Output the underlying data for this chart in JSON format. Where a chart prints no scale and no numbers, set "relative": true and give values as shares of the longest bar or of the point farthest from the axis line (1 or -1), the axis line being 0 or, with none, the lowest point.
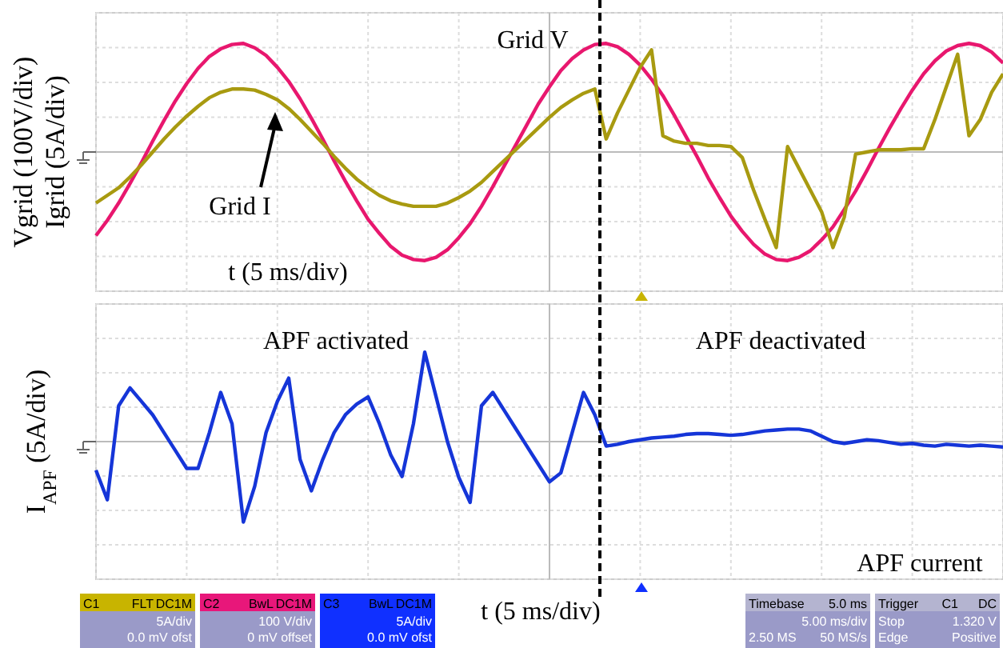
{
  "chart_data": [
    {
      "type": "line",
      "relative": true,
      "grid": true,
      "xlabel": "t (5 ms/div)",
      "ylabel": "Vgrid (100V/div)\nIgrid (5A/div)",
      "categories": [
        null,
        null,
        null,
        null,
        null,
        null,
        null,
        null,
        null,
        null,
        null,
        null,
        null,
        null,
        null,
        null,
        null,
        null,
        null,
        null,
        null,
        null,
        null,
        null,
        null,
        null,
        null,
        null,
        null,
        null,
        null,
        null,
        null,
        null,
        null,
        null,
        null,
        null,
        null,
        null,
        null,
        null,
        null,
        null,
        null,
        null,
        null,
        null,
        null,
        null,
        null,
        null,
        null,
        null,
        null,
        null,
        null,
        null,
        null,
        null,
        null,
        null,
        null,
        null,
        null,
        null,
        null,
        null,
        null,
        null,
        null,
        null,
        null,
        null,
        null,
        null,
        null,
        null,
        null,
        null,
        null
      ],
      "series": [
        {
          "name": "Grid V",
          "color": "#e8176e",
          "values": [
            -0.77,
            -0.63,
            -0.47,
            -0.29,
            -0.1,
            0.1,
            0.29,
            0.47,
            0.63,
            0.77,
            0.88,
            0.95,
            0.99,
            1.0,
            0.96,
            0.89,
            0.78,
            0.65,
            0.49,
            0.31,
            0.12,
            -0.08,
            -0.27,
            -0.45,
            -0.62,
            -0.75,
            -0.87,
            -0.95,
            -0.99,
            -1.0,
            -0.97,
            -0.9,
            -0.79,
            -0.66,
            -0.5,
            -0.32,
            -0.13,
            0.06,
            0.25,
            0.44,
            0.6,
            0.75,
            0.86,
            0.94,
            0.99,
            1.0,
            0.97,
            0.9,
            0.8,
            0.67,
            0.52,
            0.34,
            0.15,
            -0.04,
            -0.24,
            -0.42,
            -0.59,
            -0.73,
            -0.85,
            -0.94,
            -0.99,
            -1.0,
            -0.97,
            -0.91,
            -0.81,
            -0.69,
            -0.53,
            -0.36,
            -0.17,
            0.03,
            0.22,
            0.4,
            0.57,
            0.72,
            0.84,
            0.93,
            0.98,
            1.0,
            0.98,
            0.92,
            0.82
          ]
        },
        {
          "name": "Grid I",
          "color": "#a89a10",
          "values": [
            -0.47,
            -0.4,
            -0.33,
            -0.23,
            -0.12,
            0.0,
            0.12,
            0.23,
            0.33,
            0.42,
            0.5,
            0.55,
            0.58,
            0.58,
            0.57,
            0.53,
            0.48,
            0.4,
            0.3,
            0.19,
            0.08,
            -0.04,
            -0.15,
            -0.25,
            -0.33,
            -0.4,
            -0.45,
            -0.48,
            -0.5,
            -0.5,
            -0.5,
            -0.47,
            -0.42,
            -0.36,
            -0.28,
            -0.18,
            -0.08,
            0.02,
            0.12,
            0.22,
            0.32,
            0.41,
            0.48,
            0.54,
            0.58,
            0.12,
            0.36,
            0.57,
            0.78,
            0.94,
            0.15,
            0.1,
            0.08,
            0.08,
            0.06,
            0.06,
            0.05,
            -0.05,
            -0.35,
            -0.62,
            -0.88,
            0.05,
            -0.15,
            -0.35,
            -0.55,
            -0.88,
            -0.6,
            -0.02,
            0.0,
            0.02,
            0.02,
            0.02,
            0.03,
            0.03,
            0.3,
            0.6,
            0.9,
            0.15,
            0.3,
            0.55,
            0.72
          ]
        }
      ]
    },
    {
      "type": "line",
      "relative": true,
      "grid": true,
      "xlabel": "t (5 ms/div)",
      "ylabel": "I$_{APF}$ (5A/div)",
      "categories": [
        null,
        null,
        null,
        null,
        null,
        null,
        null,
        null,
        null,
        null,
        null,
        null,
        null,
        null,
        null,
        null,
        null,
        null,
        null,
        null,
        null,
        null,
        null,
        null,
        null,
        null,
        null,
        null,
        null,
        null,
        null,
        null,
        null,
        null,
        null,
        null,
        null,
        null,
        null,
        null,
        null,
        null,
        null,
        null,
        null,
        null,
        null,
        null,
        null,
        null,
        null,
        null,
        null,
        null,
        null,
        null,
        null,
        null,
        null,
        null,
        null,
        null,
        null,
        null,
        null,
        null,
        null,
        null,
        null,
        null,
        null,
        null,
        null,
        null,
        null,
        null,
        null,
        null,
        null,
        null,
        null
      ],
      "series": [
        {
          "name": "APF current",
          "color": "#1535d8",
          "values": [
            -0.32,
            -0.65,
            0.4,
            0.6,
            0.45,
            0.3,
            0.1,
            -0.1,
            -0.3,
            -0.3,
            0.1,
            0.55,
            0.2,
            -0.9,
            -0.5,
            0.1,
            0.45,
            0.71,
            -0.2,
            -0.55,
            -0.2,
            0.1,
            0.3,
            0.42,
            0.5,
            0.2,
            -0.15,
            -0.39,
            0.2,
            1.0,
            0.5,
            0.0,
            -0.4,
            -0.68,
            0.4,
            0.55,
            0.35,
            0.15,
            -0.05,
            -0.25,
            -0.45,
            -0.35,
            0.1,
            0.55,
            0.3,
            -0.05,
            -0.03,
            0.0,
            0.02,
            0.04,
            0.05,
            0.06,
            0.08,
            0.09,
            0.09,
            0.08,
            0.07,
            0.08,
            0.1,
            0.12,
            0.13,
            0.14,
            0.14,
            0.12,
            0.06,
            0.0,
            -0.02,
            0.0,
            0.02,
            0.01,
            -0.01,
            -0.03,
            -0.02,
            -0.04,
            -0.05,
            -0.03,
            -0.04,
            -0.05,
            -0.04,
            -0.05,
            -0.06
          ]
        }
      ],
      "annotations": [
        "APF activated",
        "APF deactivated"
      ]
    },
    {
      "type": "other",
      "annotations": [
        "C1",
        "FLT",
        "DC1M",
        "5A/div",
        "0.0 mV ofst",
        "C2",
        "BwL",
        "DC1M",
        "100 V/div",
        "0 mV offset",
        "C3",
        "BwL",
        "DC1M",
        "5A/div",
        "0.0 mV ofst",
        "Timebase",
        "5.0 ms",
        "5.00 ms/div",
        "2.50 MS",
        "50 MS/s",
        "Trigger",
        "C1",
        "DC",
        "Stop",
        "1.320 V",
        "Edge",
        "Positive"
      ]
    }
  ]
}
